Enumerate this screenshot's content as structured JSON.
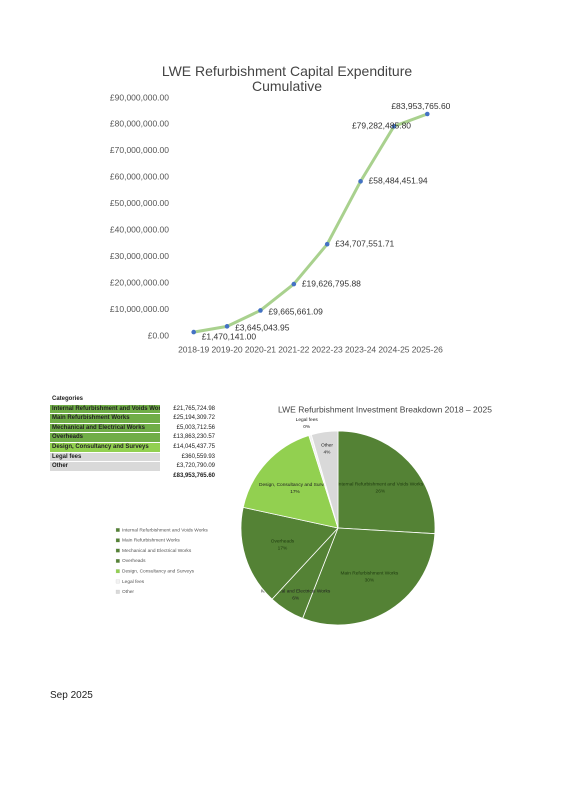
{
  "chart_data": [
    {
      "type": "line",
      "title": "LWE Refurbishment Capital Expenditure Cumulative",
      "categories": [
        "2018-19",
        "2019-20",
        "2020-21",
        "2021-22",
        "2022-23",
        "2023-24",
        "2024-25",
        "2025-26"
      ],
      "values": [
        1470141.0,
        3645043.95,
        9665661.09,
        19626795.88,
        34707551.71,
        58484451.94,
        79282485.8,
        83953765.6
      ],
      "value_labels": [
        "£1,470,141.00",
        "£3,645,043.95",
        "£9,665,661.09",
        "£19,626,795.88",
        "£34,707,551.71",
        "£58,484,451.94",
        "£79,282,485.80",
        "£83,953,765.60"
      ],
      "color": "#a9d18e",
      "marker_color": "#4472c4",
      "ylim": [
        0,
        90000000
      ],
      "yticks": [
        {
          "value": 0,
          "label": "£0.00"
        },
        {
          "value": 10000000,
          "label": "£10,000,000.00"
        },
        {
          "value": 20000000,
          "label": "£20,000,000.00"
        },
        {
          "value": 30000000,
          "label": "£30,000,000.00"
        },
        {
          "value": 40000000,
          "label": "£40,000,000.00"
        },
        {
          "value": 50000000,
          "label": "£50,000,000.00"
        },
        {
          "value": 60000000,
          "label": "£60,000,000.00"
        },
        {
          "value": 70000000,
          "label": "£70,000,000.00"
        },
        {
          "value": 80000000,
          "label": "£80,000,000.00"
        },
        {
          "value": 90000000,
          "label": "£90,000,000.00"
        }
      ]
    },
    {
      "type": "pie",
      "title": "LWE Refurbishment Investment Breakdown 2018 – 2025",
      "categories": [
        "Internal Refurbishment and Voids Works",
        "Main Refurbishment Works",
        "Mechanical and Electrical Works",
        "Overheads",
        "Design, Consultancy and Surveys",
        "Legal fees",
        "Other"
      ],
      "values": [
        25.93,
        30.01,
        5.96,
        16.51,
        16.73,
        0.43,
        4.43
      ],
      "value_labels": [
        "26%",
        "30%",
        "6%",
        "17%",
        "17%",
        "0%",
        "4%"
      ],
      "colors": [
        "#548235",
        "#548235",
        "#548235",
        "#548235",
        "#92d050",
        "#f2f2f2",
        "#d9d9d9"
      ],
      "legend": "left"
    }
  ],
  "table": {
    "header": "Categories",
    "rows": [
      [
        "Internal Refurbishment and Voids Works",
        "£21,765,724.98"
      ],
      [
        "Main Refurbishment Works",
        "£25,194,309.72"
      ],
      [
        "Mechanical and Electrical Works",
        "£5,003,712.56"
      ],
      [
        "Overheads",
        "£13,863,230.57"
      ],
      [
        "Design, Consultancy and Surveys",
        "£14,045,437.75"
      ],
      [
        "Legal fees",
        "£360,559.93"
      ],
      [
        "Other",
        "£3,720,790.09"
      ]
    ],
    "total": "£83,953,765.60"
  },
  "footer": "Sep 2025"
}
